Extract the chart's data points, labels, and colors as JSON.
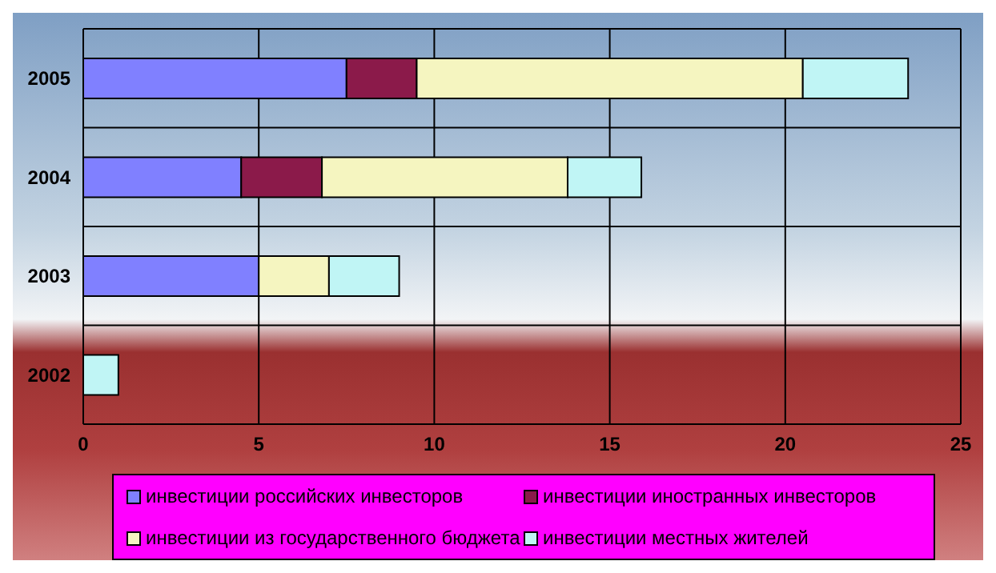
{
  "chart_data": {
    "type": "bar",
    "orientation": "horizontal",
    "stacked": true,
    "categories": [
      "2005",
      "2004",
      "2003",
      "2002"
    ],
    "series": [
      {
        "name": "инвестиции российских инвесторов",
        "color": "#8080ff",
        "values": [
          7.5,
          4.5,
          5,
          0
        ]
      },
      {
        "name": "инвестиции иностранных инвесторов",
        "color": "#8b1a4a",
        "values": [
          2,
          2.3,
          0,
          0
        ]
      },
      {
        "name": "инвестиции из государственного бюджета",
        "color": "#f5f5c0",
        "values": [
          11,
          7,
          2,
          0
        ]
      },
      {
        "name": "инвестиции местных жителей",
        "color": "#c0f5f5",
        "values": [
          3,
          2.1,
          2,
          1
        ]
      }
    ],
    "xlim": [
      0,
      25
    ],
    "xticks": [
      0,
      5,
      10,
      15,
      20,
      25
    ],
    "grid": true,
    "legend": "bottom"
  }
}
